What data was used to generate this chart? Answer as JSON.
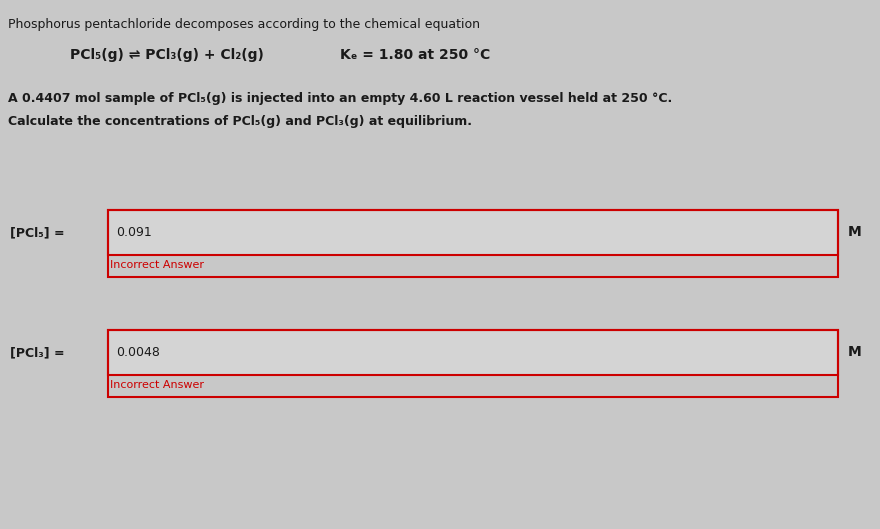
{
  "background_color": "#c8c8c8",
  "box_bg_color": "#e8e8e8",
  "title_line": "Phosphorus pentachloride decomposes according to the chemical equation",
  "equation_left": "PCl₅(g) ⇌ PCl₃(g) + Cl₂(g)",
  "equation_right": "Kₑ = 1.80 at 250 °C",
  "problem_line1": "A 0.4407 mol sample of PCl₅(g) is injected into an empty 4.60 L reaction vessel held at 250 °C.",
  "problem_line2": "Calculate the concentrations of PCl₅(g) and PCl₃(g) at equilibrium.",
  "box1_label": "[PCl₅] =",
  "box1_value": "0.091",
  "box1_feedback": "Incorrect Answer",
  "box1_unit": "M",
  "box2_label": "[PCl₃] =",
  "box2_value": "0.0048",
  "box2_feedback": "Incorrect Answer",
  "box2_unit": "M",
  "box_fill_color": "#d4d4d4",
  "box_border_color": "#cc0000",
  "feedback_color": "#cc0000",
  "text_color": "#1a1a1a",
  "font_size_title": 9,
  "font_size_equation": 10,
  "font_size_problem": 9,
  "font_size_label": 9,
  "font_size_value": 9,
  "font_size_feedback": 8,
  "font_size_unit": 10
}
